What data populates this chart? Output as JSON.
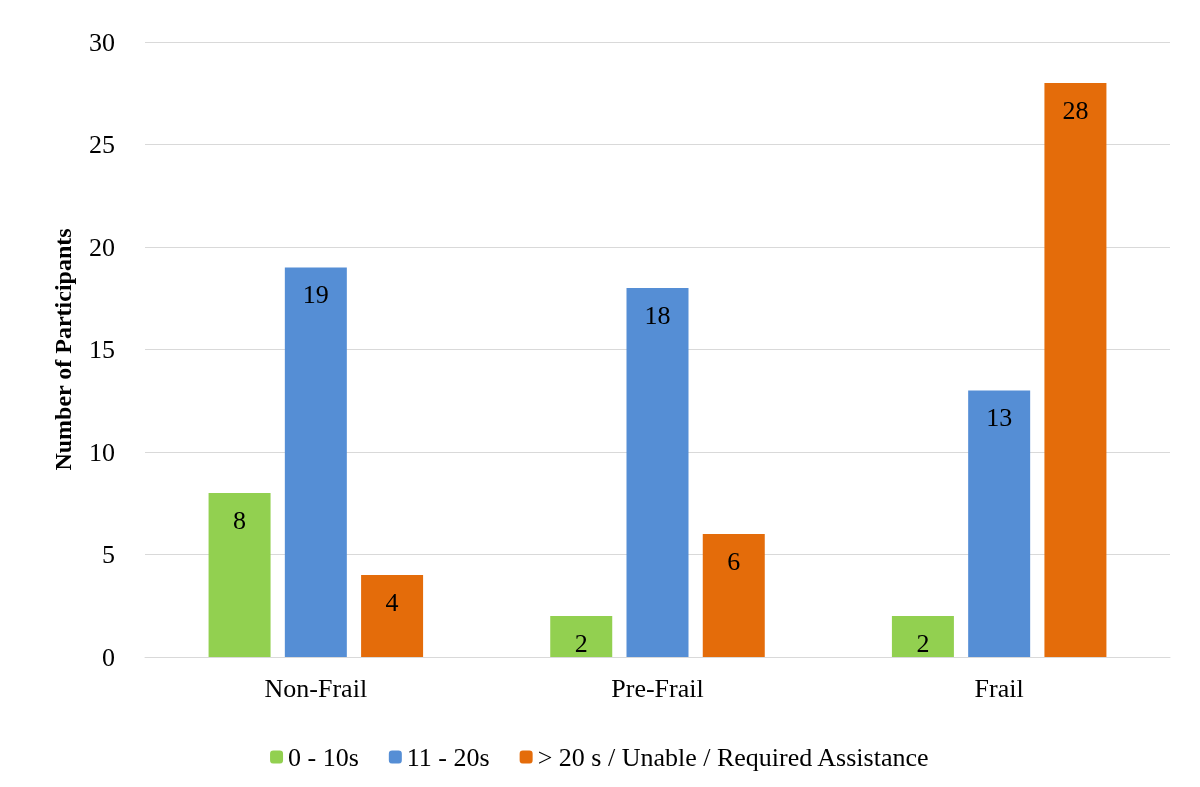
{
  "chart_data": {
    "type": "bar",
    "ylabel": "Number of Participants",
    "categories": [
      "Non-Frail",
      "Pre-Frail",
      "Frail"
    ],
    "series": [
      {
        "name": "0 - 10s",
        "color": "#92d050",
        "values": [
          8,
          2,
          2
        ]
      },
      {
        "name": "11 - 20s",
        "color": "#558ed5",
        "values": [
          19,
          18,
          13
        ]
      },
      {
        "name": "> 20 s / Unable / Required Assistance",
        "color": "#e46c0a",
        "values": [
          4,
          6,
          28
        ]
      }
    ],
    "ylim": [
      0,
      30
    ],
    "yticks": [
      0,
      5,
      10,
      15,
      20,
      25,
      30
    ],
    "grid": "y",
    "legend": "bottom",
    "data_labels": true
  }
}
